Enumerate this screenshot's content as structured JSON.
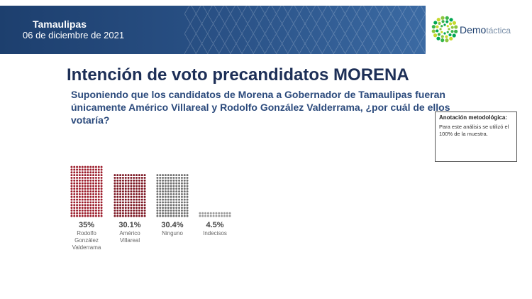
{
  "header": {
    "state": "Tamaulipas",
    "date": "06 de diciembre de 2021",
    "brand_main": "Demo",
    "brand_light": "táctica"
  },
  "title": "Intención de voto precandidatos MORENA",
  "question": "Suponiendo que los candidatos de Morena a Gobernador de Tamaulipas fueran únicamente Américo Villareal y Rodolfo González Valderrama, ¿por cuál de ellos votaría?",
  "note": {
    "title": "Anotación metodológica:",
    "body": "Para este análisis se utilizó el 100% de la muestra."
  },
  "colors": {
    "header": "#1d3f6e",
    "title": "#1d2f57",
    "question": "#2b4a7c",
    "logo_greens": [
      "#8dc63f",
      "#39b54a",
      "#00a651",
      "#c5d92d"
    ]
  },
  "chart_data": {
    "type": "bar",
    "style": "dot-matrix pictogram",
    "categories": [
      "Rodolfo González Valderrama",
      "Américo Villareal",
      "Ninguno",
      "Indecisos"
    ],
    "category_lines": [
      [
        "Rodolfo",
        "González",
        "Valderrama"
      ],
      [
        "Américo",
        "Villareal"
      ],
      [
        "Ninguno"
      ],
      [
        "Indecisos"
      ]
    ],
    "values": [
      35,
      30.1,
      30.4,
      4.5
    ],
    "value_labels": [
      "35%",
      "30.1%",
      "30.4%",
      "4.5%"
    ],
    "colors": [
      "#9b1b2a",
      "#7a1420",
      "#6f6f6f",
      "#9a9a9a"
    ],
    "ylim": [
      0,
      35
    ],
    "grid": false,
    "legend": "none"
  }
}
